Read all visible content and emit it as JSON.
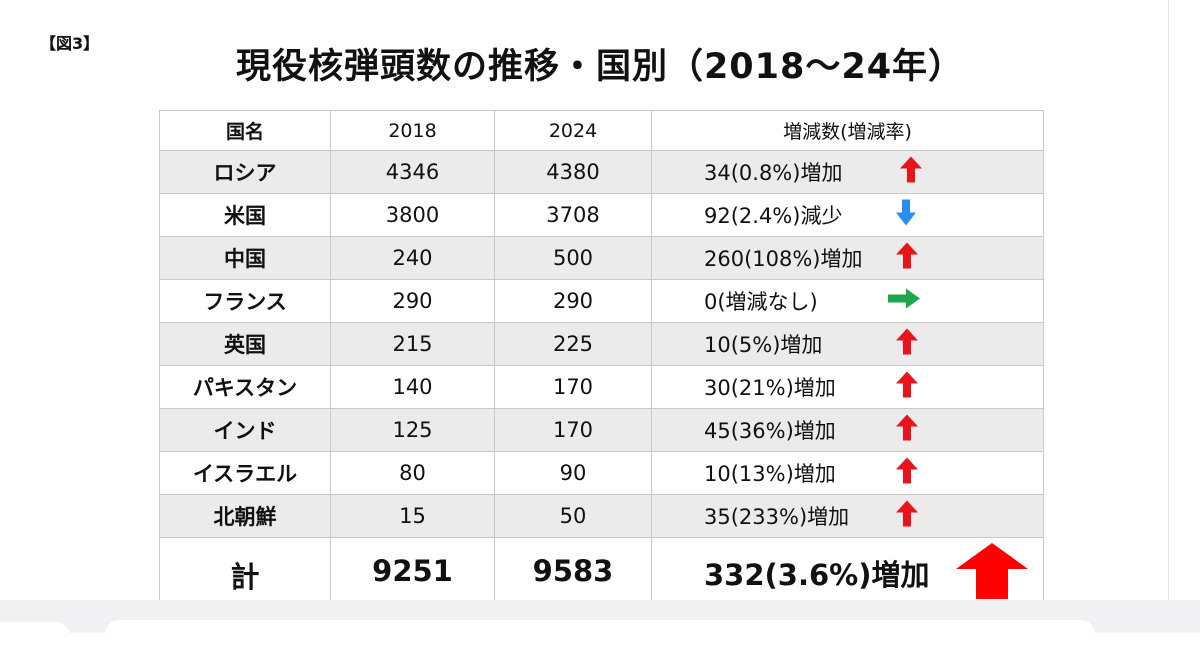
{
  "figure_label": "【図3】",
  "title": "現役核弾頭数の推移・国別（2018～24年）",
  "table": {
    "headers": [
      "国名",
      "2018",
      "2024",
      "増減数(増減率)"
    ],
    "rows": [
      {
        "country": "ロシア",
        "y2018": "4346",
        "y2024": "4380",
        "change": "34(0.8%)増加",
        "arrow": "up",
        "arrow_color": "#e8141a",
        "shaded": true
      },
      {
        "country": "米国",
        "y2018": "3800",
        "y2024": "3708",
        "change": "92(2.4%)減少",
        "arrow": "down",
        "arrow_color": "#2a8ef0",
        "shaded": false
      },
      {
        "country": "中国",
        "y2018": "240",
        "y2024": "500",
        "change": "260(108%)増加",
        "arrow": "up",
        "arrow_color": "#e8141a",
        "shaded": true
      },
      {
        "country": "フランス",
        "y2018": "290",
        "y2024": "290",
        "change": "0(増減なし)",
        "arrow": "right",
        "arrow_color": "#1aa84a",
        "shaded": false
      },
      {
        "country": "英国",
        "y2018": "215",
        "y2024": "225",
        "change": "10(5%)増加",
        "arrow": "up",
        "arrow_color": "#e8141a",
        "shaded": true
      },
      {
        "country": "パキスタン",
        "y2018": "140",
        "y2024": "170",
        "change": "30(21%)増加",
        "arrow": "up",
        "arrow_color": "#e8141a",
        "shaded": false
      },
      {
        "country": "インド",
        "y2018": "125",
        "y2024": "170",
        "change": "45(36%)増加",
        "arrow": "up",
        "arrow_color": "#e8141a",
        "shaded": true
      },
      {
        "country": "イスラエル",
        "y2018": "80",
        "y2024": "90",
        "change": "10(13%)増加",
        "arrow": "up",
        "arrow_color": "#e8141a",
        "shaded": false
      },
      {
        "country": "北朝鮮",
        "y2018": "15",
        "y2024": "50",
        "change": "35(233%)増加",
        "arrow": "up",
        "arrow_color": "#e8141a",
        "shaded": true
      }
    ],
    "total": {
      "label": "計",
      "y2018": "9251",
      "y2024": "9583",
      "change": "332(3.6%)増加",
      "arrow": "up-large",
      "arrow_color": "#ff0000"
    }
  }
}
